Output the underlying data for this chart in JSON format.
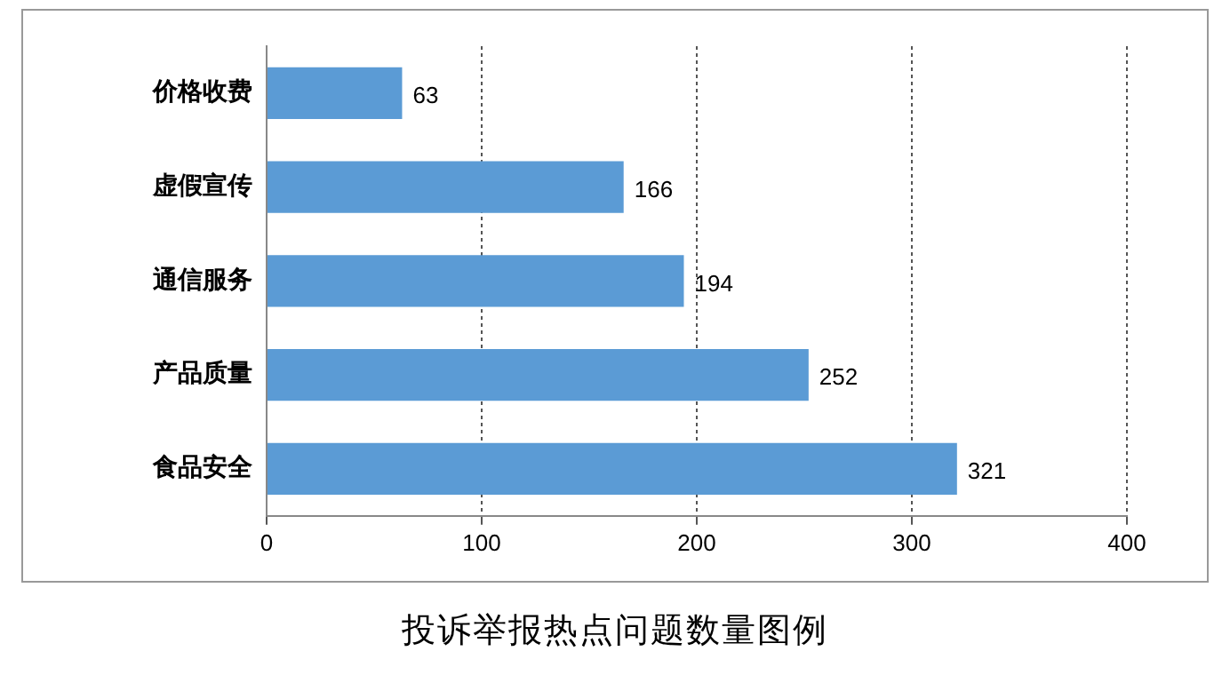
{
  "chart_data": {
    "type": "bar",
    "orientation": "horizontal",
    "title": "投诉举报热点问题数量图例",
    "categories": [
      "价格收费",
      "虚假宣传",
      "通信服务",
      "产品质量",
      "食品安全"
    ],
    "values": [
      63,
      166,
      194,
      252,
      321
    ],
    "color": "#5b9bd5",
    "xlim": [
      0,
      400
    ],
    "xticks": [
      0,
      100,
      200,
      300,
      400
    ],
    "grid": "x",
    "data_labels": true,
    "legend": false
  }
}
